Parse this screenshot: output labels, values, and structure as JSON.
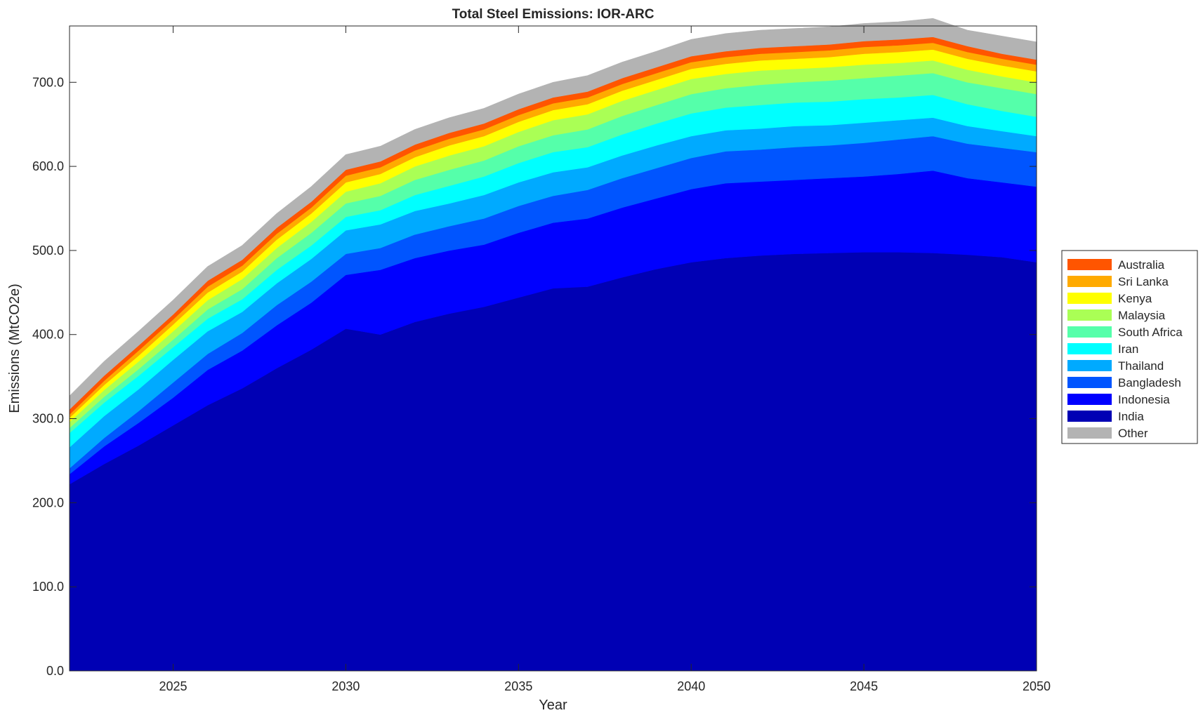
{
  "chart_data": {
    "type": "area",
    "stacked": true,
    "title": "Total Steel Emissions: IOR-ARC",
    "xlabel": "Year",
    "ylabel": "Emissions (MtCO2e)",
    "xlim": [
      2022,
      2050
    ],
    "ylim": [
      0,
      767
    ],
    "xticks": [
      2025,
      2030,
      2035,
      2040,
      2045,
      2050
    ],
    "yticks": [
      0,
      100,
      200,
      300,
      400,
      500,
      600,
      700
    ],
    "ytick_labels": [
      "0.0",
      "100.0",
      "200.0",
      "300.0",
      "400.0",
      "500.0",
      "600.0",
      "700.0"
    ],
    "legend_position": "right",
    "grid": false,
    "x": [
      2022,
      2023,
      2024,
      2025,
      2026,
      2027,
      2028,
      2029,
      2030,
      2031,
      2032,
      2033,
      2034,
      2035,
      2036,
      2037,
      2038,
      2039,
      2040,
      2041,
      2042,
      2043,
      2044,
      2045,
      2046,
      2047,
      2048,
      2049,
      2050
    ],
    "series": [
      {
        "name": "India",
        "color": "#0000b4",
        "values": [
          222,
          246,
          268,
          292,
          316,
          336,
          360,
          382,
          407,
          400,
          415,
          425,
          433,
          444,
          455,
          457,
          468,
          478,
          486,
          491,
          494,
          496,
          497,
          498,
          498,
          497,
          495,
          492,
          486
        ]
      },
      {
        "name": "Indonesia",
        "color": "#0000ff",
        "values": [
          12,
          21,
          27,
          33,
          42,
          45,
          51,
          56,
          64,
          77,
          76,
          75,
          74,
          77,
          78,
          81,
          83,
          84,
          87,
          89,
          88,
          88,
          89,
          90,
          93,
          98,
          91,
          89,
          90
        ]
      },
      {
        "name": "Bangladesh",
        "color": "#0055ff",
        "values": [
          7,
          10,
          14,
          18,
          19,
          21,
          24,
          25,
          25,
          26,
          28,
          29,
          31,
          32,
          32,
          34,
          35,
          36,
          37,
          38,
          38,
          39,
          39,
          40,
          41,
          41,
          41,
          41,
          41
        ]
      },
      {
        "name": "Thailand",
        "color": "#00aaff",
        "values": [
          25,
          26,
          26,
          27,
          27,
          25,
          26,
          27,
          28,
          28,
          28,
          27,
          28,
          28,
          28,
          27,
          27,
          27,
          26,
          25,
          25,
          25,
          24,
          24,
          23,
          22,
          21,
          20,
          19
        ]
      },
      {
        "name": "Iran",
        "color": "#00ffff",
        "values": [
          17,
          16,
          16,
          15,
          15,
          15,
          16,
          16,
          16,
          17,
          19,
          21,
          22,
          23,
          24,
          24,
          25,
          26,
          27,
          27,
          28,
          28,
          28,
          28,
          27,
          27,
          26,
          24,
          23
        ]
      },
      {
        "name": "South Africa",
        "color": "#55ffaa",
        "values": [
          6,
          7,
          8,
          9,
          11,
          12,
          14,
          15,
          16,
          17,
          18,
          19,
          19,
          20,
          20,
          21,
          22,
          22,
          23,
          23,
          24,
          24,
          25,
          25,
          26,
          26,
          26,
          27,
          27
        ]
      },
      {
        "name": "Malaysia",
        "color": "#aaff55",
        "values": [
          7,
          8,
          9,
          10,
          11,
          12,
          12,
          13,
          14,
          15,
          16,
          17,
          17,
          17,
          18,
          18,
          18,
          18,
          18,
          17,
          17,
          16,
          16,
          16,
          15,
          15,
          15,
          14,
          14
        ]
      },
      {
        "name": "Kenya",
        "color": "#ffff00",
        "values": [
          5,
          6,
          7,
          8,
          9,
          9,
          10,
          10,
          11,
          11,
          11,
          12,
          12,
          12,
          12,
          12,
          12,
          12,
          12,
          12,
          12,
          12,
          12,
          13,
          13,
          13,
          13,
          13,
          13
        ]
      },
      {
        "name": "Sri Lanka",
        "color": "#ffaa00",
        "values": [
          4,
          5,
          6,
          6,
          7,
          7,
          7,
          7,
          8,
          8,
          8,
          8,
          8,
          8,
          8,
          8,
          8,
          8,
          8,
          8,
          8,
          8,
          8,
          8,
          8,
          8,
          8,
          8,
          8
        ]
      },
      {
        "name": "Australia",
        "color": "#ff5500",
        "values": [
          6,
          6,
          6,
          6,
          7,
          7,
          7,
          7,
          7,
          7,
          7,
          7,
          7,
          7,
          7,
          7,
          7,
          7,
          7,
          7,
          7,
          7,
          7,
          7,
          7,
          7,
          7,
          6,
          6
        ]
      },
      {
        "name": "Other",
        "color": "#b3b3b3",
        "values": [
          16,
          17,
          17,
          17,
          17,
          17,
          17,
          18,
          18,
          18,
          18,
          18,
          18,
          18,
          18,
          19,
          19,
          19,
          20,
          21,
          21,
          21,
          21,
          21,
          21,
          22,
          19,
          21,
          21
        ]
      }
    ],
    "legend_order": [
      "Australia",
      "Sri Lanka",
      "Kenya",
      "Malaysia",
      "South Africa",
      "Iran",
      "Thailand",
      "Bangladesh",
      "Indonesia",
      "India",
      "Other"
    ]
  }
}
